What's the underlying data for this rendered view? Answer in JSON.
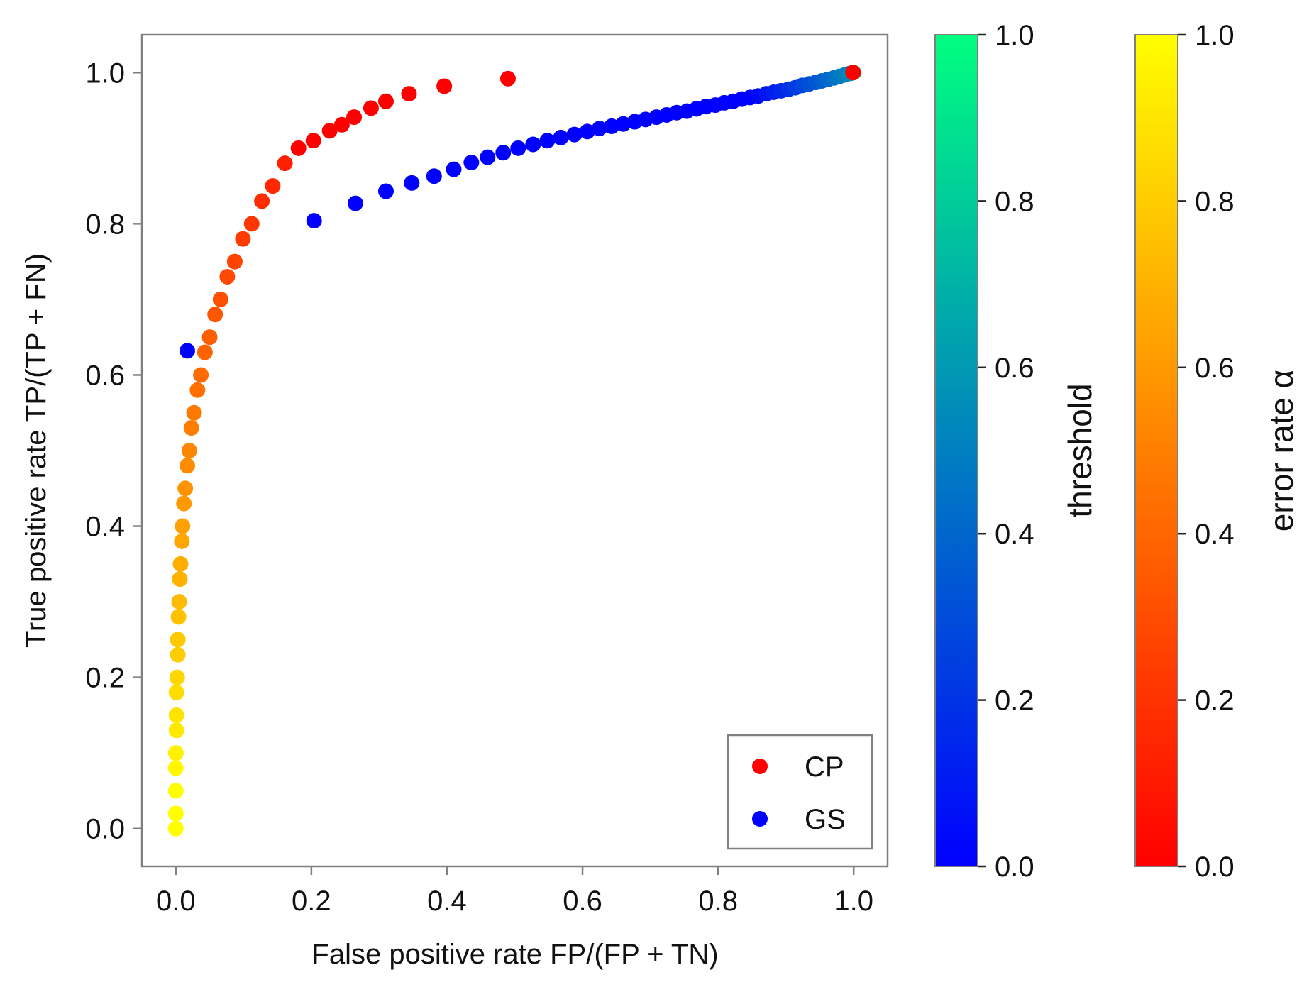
{
  "chart_data": {
    "type": "scatter",
    "xlabel": "False positive rate FP/(FP + TN)",
    "ylabel": "True positive rate TP/(TP + FN)",
    "xlim": [
      -0.05,
      1.05
    ],
    "ylim": [
      -0.05,
      1.05
    ],
    "xticks": [
      "0.0",
      "0.2",
      "0.4",
      "0.6",
      "0.8",
      "1.0"
    ],
    "yticks": [
      "0.0",
      "0.2",
      "0.4",
      "0.6",
      "0.8",
      "1.0"
    ],
    "legend": {
      "position": "lower-right",
      "entries": [
        "CP",
        "GS"
      ]
    },
    "series": [
      {
        "name": "CP",
        "color": "#ff0000",
        "colormap": "autumn",
        "colorbar_label": "error rate α",
        "colorbar_ticks": [
          "0.0",
          "0.2",
          "0.4",
          "0.6",
          "0.8",
          "1.0"
        ],
        "note": "dense parametric curve plus sparse red points",
        "points": [
          [
            0.0,
            0.0
          ],
          [
            0.0,
            0.02
          ],
          [
            0.0,
            0.05
          ],
          [
            0.0,
            0.08
          ],
          [
            0.0,
            0.1
          ],
          [
            0.001,
            0.13
          ],
          [
            0.001,
            0.15
          ],
          [
            0.001,
            0.18
          ],
          [
            0.002,
            0.2
          ],
          [
            0.003,
            0.23
          ],
          [
            0.003,
            0.25
          ],
          [
            0.004,
            0.28
          ],
          [
            0.005,
            0.3
          ],
          [
            0.006,
            0.33
          ],
          [
            0.007,
            0.35
          ],
          [
            0.009,
            0.38
          ],
          [
            0.01,
            0.4
          ],
          [
            0.012,
            0.43
          ],
          [
            0.014,
            0.45
          ],
          [
            0.017,
            0.48
          ],
          [
            0.02,
            0.5
          ],
          [
            0.023,
            0.53
          ],
          [
            0.027,
            0.55
          ],
          [
            0.032,
            0.58
          ],
          [
            0.037,
            0.6
          ],
          [
            0.043,
            0.63
          ],
          [
            0.05,
            0.65
          ],
          [
            0.058,
            0.68
          ],
          [
            0.066,
            0.7
          ],
          [
            0.076,
            0.73
          ],
          [
            0.087,
            0.75
          ],
          [
            0.099,
            0.78
          ],
          [
            0.112,
            0.8
          ],
          [
            0.127,
            0.83
          ],
          [
            0.143,
            0.85
          ],
          [
            0.161,
            0.88
          ],
          [
            0.181,
            0.9
          ],
          [
            0.203,
            0.91
          ],
          [
            0.227,
            0.923
          ],
          [
            0.245,
            0.931
          ],
          [
            0.263,
            0.941
          ],
          [
            0.288,
            0.953
          ],
          [
            0.31,
            0.962
          ],
          [
            0.344,
            0.972
          ],
          [
            0.396,
            0.982
          ],
          [
            0.49,
            0.992
          ],
          [
            0.999,
            1.0
          ]
        ]
      },
      {
        "name": "GS",
        "color": "#0000ff",
        "colormap": "winter",
        "colorbar_label": "threshold",
        "colorbar_ticks": [
          "0.0",
          "0.2",
          "0.4",
          "0.6",
          "0.8",
          "1.0"
        ],
        "points": [
          [
            0.017,
            0.632
          ],
          [
            0.204,
            0.804
          ],
          [
            0.265,
            0.827
          ],
          [
            0.31,
            0.843
          ],
          [
            0.348,
            0.854
          ],
          [
            0.381,
            0.863
          ],
          [
            0.41,
            0.872
          ],
          [
            0.436,
            0.881
          ],
          [
            0.46,
            0.888
          ],
          [
            0.483,
            0.894
          ],
          [
            0.505,
            0.9
          ],
          [
            0.527,
            0.905
          ],
          [
            0.548,
            0.91
          ],
          [
            0.568,
            0.914
          ],
          [
            0.588,
            0.918
          ],
          [
            0.607,
            0.922
          ],
          [
            0.625,
            0.926
          ],
          [
            0.643,
            0.929
          ],
          [
            0.66,
            0.932
          ],
          [
            0.677,
            0.935
          ],
          [
            0.693,
            0.938
          ],
          [
            0.709,
            0.941
          ],
          [
            0.724,
            0.944
          ],
          [
            0.739,
            0.947
          ],
          [
            0.754,
            0.949
          ],
          [
            0.768,
            0.952
          ],
          [
            0.782,
            0.955
          ],
          [
            0.796,
            0.957
          ],
          [
            0.809,
            0.96
          ],
          [
            0.822,
            0.962
          ],
          [
            0.835,
            0.965
          ],
          [
            0.847,
            0.967
          ],
          [
            0.859,
            0.969
          ],
          [
            0.871,
            0.972
          ],
          [
            0.882,
            0.974
          ],
          [
            0.893,
            0.976
          ],
          [
            0.904,
            0.978
          ],
          [
            0.914,
            0.98
          ],
          [
            0.924,
            0.983
          ],
          [
            0.934,
            0.985
          ],
          [
            0.944,
            0.987
          ],
          [
            0.953,
            0.989
          ],
          [
            0.962,
            0.991
          ],
          [
            0.971,
            0.993
          ],
          [
            0.979,
            0.995
          ],
          [
            0.987,
            0.997
          ],
          [
            0.995,
            0.999
          ],
          [
            1.0,
            1.0
          ]
        ]
      }
    ]
  }
}
